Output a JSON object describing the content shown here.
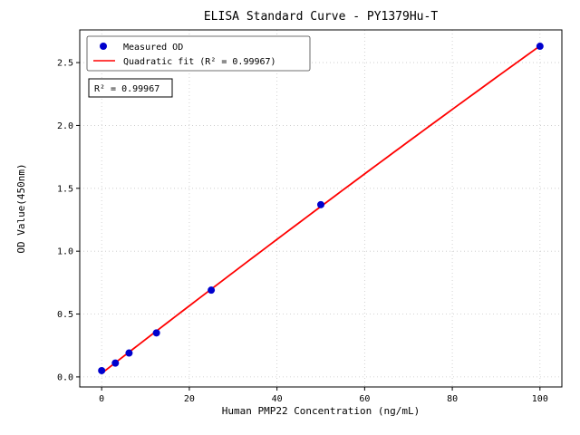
{
  "chart_data": {
    "type": "scatter",
    "title": "ELISA Standard Curve - PY1379Hu-T",
    "xlabel": "Human PMP22 Concentration (ng/mL)",
    "ylabel": "OD Value(450nm)",
    "xlim": [
      -5,
      105
    ],
    "ylim": [
      -0.08,
      2.76
    ],
    "x_ticks": [
      0,
      20,
      40,
      60,
      80,
      100
    ],
    "y_ticks": [
      0.0,
      0.5,
      1.0,
      1.5,
      2.0,
      2.5
    ],
    "grid": true,
    "legend_position": "upper-left",
    "series": [
      {
        "name": "Measured OD",
        "type": "scatter",
        "color": "#0000cd",
        "x": [
          0,
          3.125,
          6.25,
          12.5,
          25,
          50,
          100
        ],
        "y": [
          0.05,
          0.11,
          0.19,
          0.35,
          0.69,
          1.37,
          2.63
        ]
      },
      {
        "name": "Quadratic fit (R² = 0.99967)",
        "type": "line",
        "color": "#ff0000",
        "fit": "quadratic"
      }
    ],
    "annotation": "R² = 0.99967",
    "r_squared": 0.99967
  },
  "colors": {
    "background": "#ffffff",
    "grid": "#c8c8c8",
    "axis": "#000000",
    "scatter": "#0000cd",
    "fit_line": "#ff0000"
  }
}
